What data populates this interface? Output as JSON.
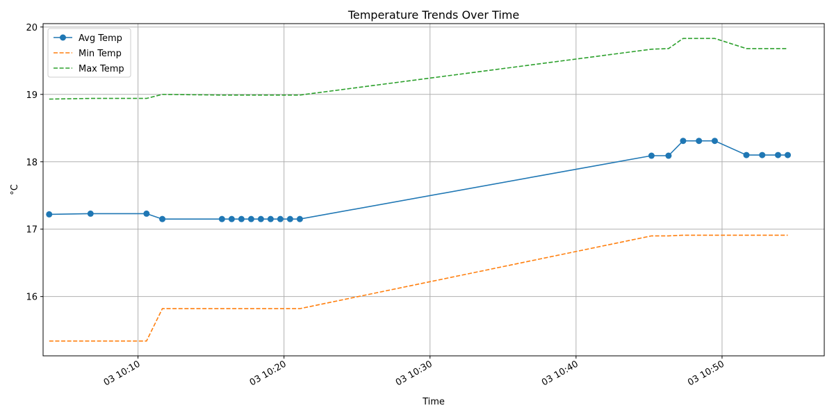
{
  "chart_data": {
    "type": "line",
    "title": "Temperature Trends Over Time",
    "xlabel": "Time",
    "ylabel": "°C",
    "x_ticks": [
      "03 10:10",
      "03 10:20",
      "03 10:30",
      "03 10:40",
      "03 10:50"
    ],
    "y_ticks": [
      "16",
      "17",
      "18",
      "19",
      "20"
    ],
    "xlim": [
      "10:03:30",
      "10:57:00"
    ],
    "ylim": [
      15.12,
      20.05
    ],
    "grid": true,
    "legend": "top-left",
    "series": [
      {
        "name": "Avg Temp",
        "color": "#1f77b4",
        "style": "solid",
        "marker": "circle",
        "x": [
          "10:03:55",
          "10:06:45",
          "10:10:35",
          "10:11:40",
          "10:15:45",
          "10:16:25",
          "10:17:05",
          "10:17:45",
          "10:18:25",
          "10:19:05",
          "10:19:45",
          "10:20:25",
          "10:21:05",
          "10:45:10",
          "10:46:20",
          "10:47:20",
          "10:48:25",
          "10:49:30",
          "10:51:40",
          "10:52:45",
          "10:53:50",
          "10:54:30"
        ],
        "values": [
          17.22,
          17.23,
          17.23,
          17.15,
          17.15,
          17.15,
          17.15,
          17.15,
          17.15,
          17.15,
          17.15,
          17.15,
          17.15,
          18.09,
          18.09,
          18.31,
          18.31,
          18.31,
          18.1,
          18.1,
          18.1,
          18.1
        ]
      },
      {
        "name": "Min Temp",
        "color": "#ff7f0e",
        "style": "dashed",
        "marker": "none",
        "x": [
          "10:03:55",
          "10:06:45",
          "10:10:35",
          "10:11:40",
          "10:15:45",
          "10:16:25",
          "10:17:05",
          "10:17:45",
          "10:18:25",
          "10:19:05",
          "10:19:45",
          "10:20:25",
          "10:21:05",
          "10:45:10",
          "10:46:20",
          "10:47:20",
          "10:48:25",
          "10:49:30",
          "10:51:40",
          "10:52:45",
          "10:53:50",
          "10:54:30"
        ],
        "values": [
          15.34,
          15.34,
          15.34,
          15.82,
          15.82,
          15.82,
          15.82,
          15.82,
          15.82,
          15.82,
          15.82,
          15.82,
          15.82,
          16.9,
          16.9,
          16.91,
          16.91,
          16.91,
          16.91,
          16.91,
          16.91,
          16.91
        ]
      },
      {
        "name": "Max Temp",
        "color": "#2ca02c",
        "style": "dashed",
        "marker": "none",
        "x": [
          "10:03:55",
          "10:06:45",
          "10:10:35",
          "10:11:40",
          "10:15:45",
          "10:16:25",
          "10:17:05",
          "10:17:45",
          "10:18:25",
          "10:19:05",
          "10:19:45",
          "10:20:25",
          "10:21:05",
          "10:45:10",
          "10:46:20",
          "10:47:20",
          "10:48:25",
          "10:49:30",
          "10:51:40",
          "10:52:45",
          "10:53:50",
          "10:54:30"
        ],
        "values": [
          18.93,
          18.94,
          18.94,
          19.0,
          18.99,
          18.99,
          18.99,
          18.99,
          18.99,
          18.99,
          18.99,
          18.99,
          18.99,
          19.67,
          19.68,
          19.83,
          19.83,
          19.83,
          19.68,
          19.68,
          19.68,
          19.68
        ]
      }
    ]
  }
}
